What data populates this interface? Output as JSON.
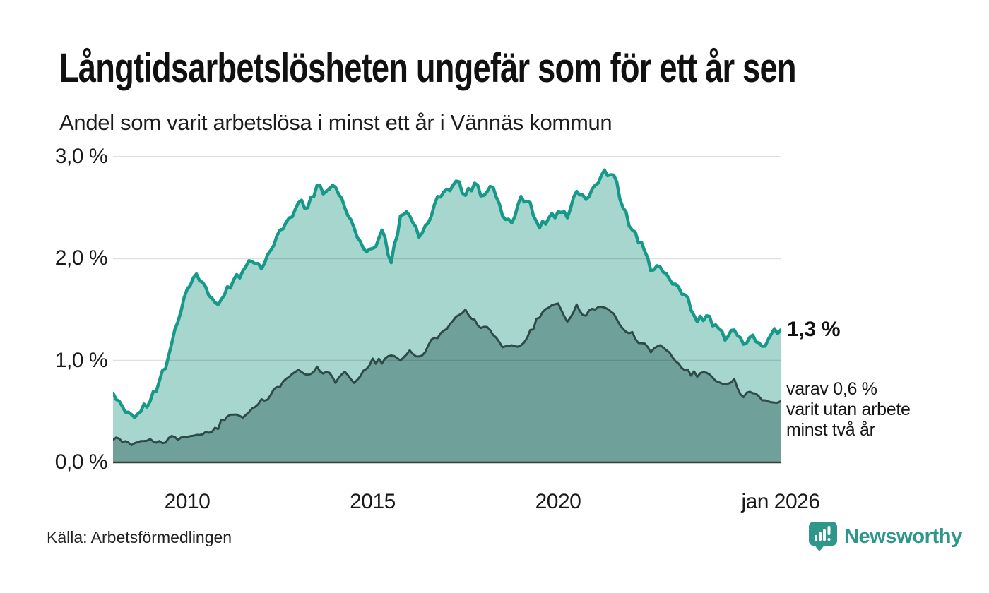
{
  "header": {
    "title": "Långtidsarbetslösheten ungefär som för ett år sen",
    "subtitle": "Andel som varit arbetslösa i minst ett år i Vännäs kommun"
  },
  "chart_data": {
    "type": "area",
    "title": "Långtidsarbetslösheten ungefär som för ett år sen",
    "subtitle": "Andel som varit arbetslösa i minst ett år i Vännäs kommun",
    "unit": "%",
    "ylim": [
      0,
      3
    ],
    "grid": true,
    "x_start_year": 2008,
    "x_end_year": 2026,
    "points_per_year": 4,
    "y_ticks": [
      {
        "label": "3,0 %",
        "value": 3.0
      },
      {
        "label": "2,0 %",
        "value": 2.0
      },
      {
        "label": "1,0 %",
        "value": 1.0
      },
      {
        "label": "0,0 %",
        "value": 0.0
      }
    ],
    "x_ticks": [
      {
        "label": "2010",
        "year": 2010
      },
      {
        "label": "2015",
        "year": 2015
      },
      {
        "label": "2020",
        "year": 2020
      },
      {
        "label": "jan 2026",
        "year": 2026
      }
    ],
    "series": [
      {
        "name": "Arbetslösa minst ett år",
        "line_color": "#17998A",
        "fill_color": "#A7D6CF",
        "latest_value": 1.3,
        "values": [
          0.68,
          0.55,
          0.47,
          0.5,
          0.6,
          0.8,
          1.05,
          1.38,
          1.7,
          1.85,
          1.72,
          1.57,
          1.64,
          1.79,
          1.88,
          1.97,
          1.9,
          2.08,
          2.28,
          2.4,
          2.55,
          2.5,
          2.72,
          2.66,
          2.7,
          2.5,
          2.3,
          2.1,
          2.1,
          2.28,
          1.96,
          2.42,
          2.42,
          2.21,
          2.35,
          2.61,
          2.68,
          2.76,
          2.62,
          2.74,
          2.62,
          2.7,
          2.42,
          2.35,
          2.61,
          2.55,
          2.3,
          2.4,
          2.46,
          2.4,
          2.66,
          2.58,
          2.72,
          2.87,
          2.82,
          2.5,
          2.28,
          2.16,
          1.88,
          1.92,
          1.8,
          1.72,
          1.62,
          1.38,
          1.44,
          1.35,
          1.2,
          1.3,
          1.16,
          1.25,
          1.14,
          1.26,
          1.3
        ]
      },
      {
        "name": "Arbetslösa minst två år",
        "line_color": "#2E4B48",
        "fill_color": "#70A09A",
        "latest_value": 0.6,
        "values": [
          0.22,
          0.2,
          0.17,
          0.21,
          0.23,
          0.21,
          0.24,
          0.22,
          0.25,
          0.27,
          0.3,
          0.34,
          0.41,
          0.47,
          0.44,
          0.53,
          0.62,
          0.66,
          0.74,
          0.84,
          0.91,
          0.86,
          0.94,
          0.89,
          0.78,
          0.89,
          0.78,
          0.9,
          1.02,
          0.97,
          1.05,
          1.0,
          1.1,
          1.04,
          1.15,
          1.22,
          1.31,
          1.43,
          1.5,
          1.4,
          1.33,
          1.25,
          1.13,
          1.15,
          1.15,
          1.3,
          1.42,
          1.52,
          1.56,
          1.38,
          1.55,
          1.44,
          1.5,
          1.52,
          1.46,
          1.31,
          1.28,
          1.17,
          1.08,
          1.15,
          1.08,
          0.97,
          0.91,
          0.84,
          0.88,
          0.8,
          0.77,
          0.82,
          0.64,
          0.68,
          0.61,
          0.59,
          0.6
        ]
      }
    ],
    "annotations": {
      "latest_value_label": "1,3 %",
      "secondary_label_lines": [
        "varav 0,6 %",
        "varit utan arbete",
        "minst två år"
      ]
    },
    "legend_position": "none"
  },
  "footer": {
    "source": "Källa: Arbetsförmedlingen",
    "brand": "Newsworthy"
  },
  "colors": {
    "primary_line": "#17998A",
    "primary_fill": "#A7D6CF",
    "secondary_line": "#2E4B48",
    "secondary_fill": "#70A09A",
    "gridline": "rgba(0,0,0,0.12)",
    "baseline": "#333d3b",
    "brand_teal": "#2E968B"
  }
}
